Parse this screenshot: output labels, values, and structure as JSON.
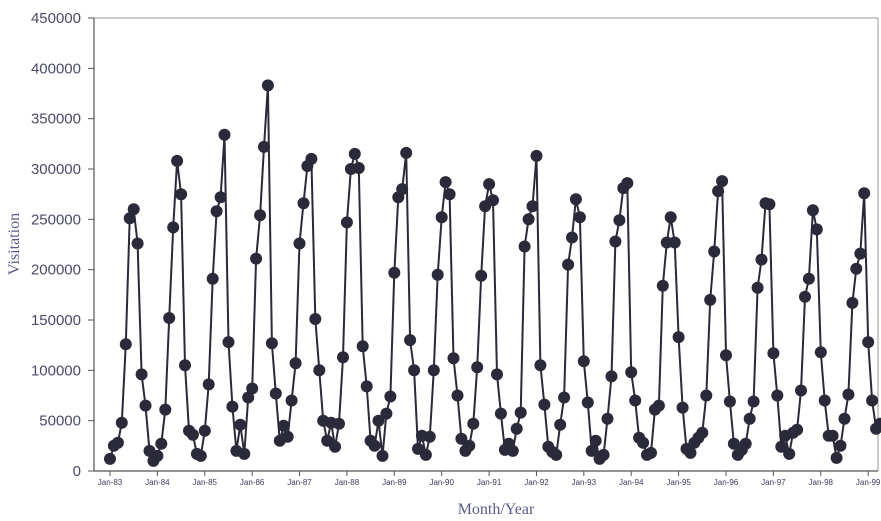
{
  "chart_data": {
    "type": "line",
    "title": "",
    "xlabel": "Month/Year",
    "ylabel": "Visitation",
    "ylim": [
      0,
      450000
    ],
    "yticks": [
      0,
      50000,
      100000,
      150000,
      200000,
      250000,
      300000,
      350000,
      400000,
      450000
    ],
    "ytick_labels": [
      "0",
      "50000",
      "100000",
      "150000",
      "200000",
      "250000",
      "300000",
      "350000",
      "400000",
      "450000"
    ],
    "xticks": [
      "Jan-83",
      "Jan-84",
      "Jan-85",
      "Jan-86",
      "Jan-87",
      "Jan-88",
      "Jan-89",
      "Jan-90",
      "Jan-91",
      "Jan-92",
      "Jan-93",
      "Jan-94",
      "Jan-95",
      "Jan-96",
      "Jan-97",
      "Jan-98",
      "Jan-99"
    ],
    "grid": false,
    "series_color": "#2a2a3a",
    "series": [
      {
        "values": [
          12000,
          25000,
          28000,
          48000,
          126000,
          251000,
          260000,
          226000,
          96000,
          65000,
          20000,
          10000,
          15000,
          27000,
          61000,
          152000,
          242000,
          308000,
          275000,
          105000,
          40000,
          36000,
          17000,
          15000,
          40000,
          86000,
          191000,
          258000,
          272000,
          334000,
          128000,
          64000,
          20000,
          46000,
          17000,
          73000,
          82000,
          211000,
          254000,
          322000,
          383000,
          127000,
          77000,
          30000,
          45000,
          34000,
          70000,
          107000,
          226000,
          266000,
          303000,
          310000,
          151000,
          100000,
          50000,
          30000,
          48000,
          24000,
          47000,
          113000,
          247000,
          300000,
          315000,
          301000,
          124000,
          84000,
          30000,
          25000,
          50000,
          15000,
          57000,
          74000,
          197000,
          272000,
          280000,
          316000,
          130000,
          100000,
          22000,
          35000,
          16000,
          34000,
          100000,
          195000,
          252000,
          287000,
          275000,
          112000,
          75000,
          32000,
          20000,
          25000,
          47000,
          103000,
          194000,
          263000,
          285000,
          269000,
          96000,
          57000,
          21000,
          27000,
          20000,
          42000,
          58000,
          223000,
          250000,
          263000,
          313000,
          105000,
          66000,
          24000,
          19000,
          16000,
          46000,
          73000,
          205000,
          232000,
          270000,
          252000,
          109000,
          68000,
          20000,
          30000,
          12000,
          16000,
          52000,
          94000,
          228000,
          249000,
          281000,
          286000,
          98000,
          70000,
          33000,
          28000,
          16000,
          18000,
          61000,
          65000,
          184000,
          227000,
          252000,
          227000,
          133000,
          63000,
          22000,
          18000,
          28000,
          33000,
          38000,
          75000,
          170000,
          218000,
          278000,
          288000,
          115000,
          69000,
          27000,
          16000,
          21000,
          27000,
          52000,
          69000,
          182000,
          210000,
          266000,
          265000,
          117000,
          75000,
          24000,
          35000,
          17000,
          38000,
          41000,
          80000,
          173000,
          191000,
          259000,
          240000,
          118000,
          70000,
          35000,
          35000,
          13000,
          25000,
          52000,
          76000,
          167000,
          201000,
          216000,
          276000,
          128000,
          70000,
          42000,
          47000
        ]
      }
    ]
  }
}
